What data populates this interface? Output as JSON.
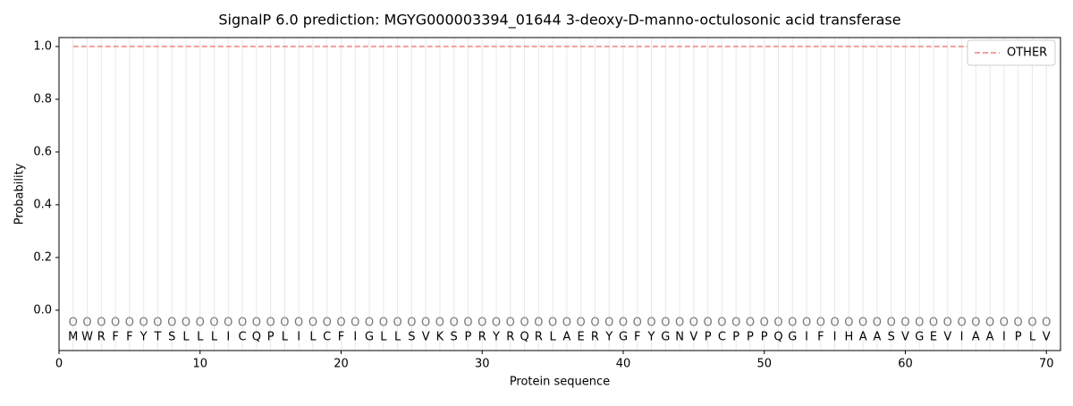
{
  "chart_data": {
    "type": "line",
    "title": "SignalP 6.0 prediction: MGYG000003394_01644 3-deoxy-D-manno-octulosonic acid transferase",
    "x_label": "Protein sequence",
    "y_label": "Probability",
    "x": [
      1,
      2,
      3,
      4,
      5,
      6,
      7,
      8,
      9,
      10,
      11,
      12,
      13,
      14,
      15,
      16,
      17,
      18,
      19,
      20,
      21,
      22,
      23,
      24,
      25,
      26,
      27,
      28,
      29,
      30,
      31,
      32,
      33,
      34,
      35,
      36,
      37,
      38,
      39,
      40,
      41,
      42,
      43,
      44,
      45,
      46,
      47,
      48,
      49,
      50,
      51,
      52,
      53,
      54,
      55,
      56,
      57,
      58,
      59,
      60,
      61,
      62,
      63,
      64,
      65,
      66,
      67,
      68,
      69,
      70
    ],
    "residues": [
      "M",
      "W",
      "R",
      "F",
      "F",
      "Y",
      "T",
      "S",
      "L",
      "L",
      "L",
      "I",
      "C",
      "Q",
      "P",
      "L",
      "I",
      "L",
      "C",
      "F",
      "I",
      "G",
      "L",
      "L",
      "S",
      "V",
      "K",
      "S",
      "P",
      "R",
      "Y",
      "R",
      "Q",
      "R",
      "L",
      "A",
      "E",
      "R",
      "Y",
      "G",
      "F",
      "Y",
      "G",
      "N",
      "V",
      "P",
      "C",
      "P",
      "P",
      "P",
      "Q",
      "G",
      "I",
      "F",
      "I",
      "H",
      "A",
      "A",
      "S",
      "V",
      "G",
      "E",
      "V",
      "I",
      "A",
      "A",
      "I",
      "P",
      "L",
      "V"
    ],
    "annotations": [
      "O",
      "O",
      "O",
      "O",
      "O",
      "O",
      "O",
      "O",
      "O",
      "O",
      "O",
      "O",
      "O",
      "O",
      "O",
      "O",
      "O",
      "O",
      "O",
      "O",
      "O",
      "O",
      "O",
      "O",
      "O",
      "O",
      "O",
      "O",
      "O",
      "O",
      "O",
      "O",
      "O",
      "O",
      "O",
      "O",
      "O",
      "O",
      "O",
      "O",
      "O",
      "O",
      "O",
      "O",
      "O",
      "O",
      "O",
      "O",
      "O",
      "O",
      "O",
      "O",
      "O",
      "O",
      "O",
      "O",
      "O",
      "O",
      "O",
      "O",
      "O",
      "O",
      "O",
      "O",
      "O",
      "O",
      "O",
      "O",
      "O",
      "O"
    ],
    "series": [
      {
        "name": "OTHER",
        "color": "#f08080",
        "dashed": true,
        "values": [
          1,
          1,
          1,
          1,
          1,
          1,
          1,
          1,
          1,
          1,
          1,
          1,
          1,
          1,
          1,
          1,
          1,
          1,
          1,
          1,
          1,
          1,
          1,
          1,
          1,
          1,
          1,
          1,
          1,
          1,
          1,
          1,
          1,
          1,
          1,
          1,
          1,
          1,
          1,
          1,
          1,
          1,
          1,
          1,
          1,
          1,
          1,
          1,
          1,
          1,
          1,
          1,
          1,
          1,
          1,
          1,
          1,
          1,
          1,
          1,
          1,
          1,
          1,
          1,
          1,
          1,
          1,
          1,
          1,
          1
        ]
      }
    ],
    "xlim": [
      0,
      71
    ],
    "ylim": [
      -0.153,
      1.034
    ],
    "xticks": [
      0,
      10,
      20,
      30,
      40,
      50,
      60,
      70
    ],
    "yticks": [
      {
        "value": 0,
        "label": "0.0"
      },
      {
        "value": 0.2,
        "label": "0.2"
      },
      {
        "value": 0.4,
        "label": "0.4"
      },
      {
        "value": 0.6,
        "label": "0.6"
      },
      {
        "value": 0.8,
        "label": "0.8"
      },
      {
        "value": 1,
        "label": "1.0"
      }
    ],
    "legend": "upper right",
    "grid": true
  }
}
